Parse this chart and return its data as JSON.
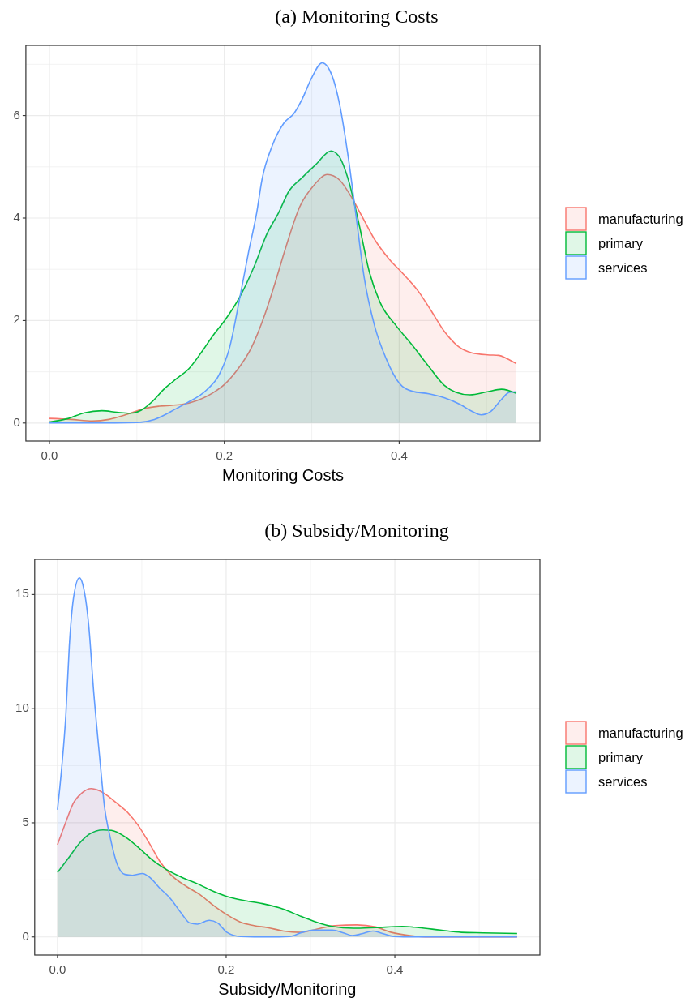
{
  "chart_data": [
    {
      "type": "area",
      "title": "(a) Monitoring Costs",
      "xlabel": "Monitoring Costs",
      "xlim": [
        -0.027,
        0.561
      ],
      "xticks": [
        {
          "value": 0,
          "label": "0.0"
        },
        {
          "value": 0.2,
          "label": "0.2"
        },
        {
          "value": 0.4,
          "label": "0.4"
        }
      ],
      "ylim": [
        -0.351,
        7.37
      ],
      "yticks": [
        0,
        2,
        4,
        6
      ],
      "grid": true,
      "legend": "right",
      "series": [
        {
          "name": "manufacturing",
          "color": "#f8766d",
          "x": [
            0,
            0.025,
            0.049,
            0.068,
            0.089,
            0.108,
            0.126,
            0.151,
            0.169,
            0.188,
            0.2,
            0.215,
            0.231,
            0.246,
            0.258,
            0.268,
            0.274,
            0.286,
            0.302,
            0.318,
            0.332,
            0.345,
            0.357,
            0.372,
            0.388,
            0.403,
            0.422,
            0.437,
            0.452,
            0.468,
            0.483,
            0.501,
            0.514,
            0.523,
            0.534
          ],
          "values": [
            0.09,
            0.07,
            0.04,
            0.07,
            0.17,
            0.28,
            0.33,
            0.36,
            0.44,
            0.6,
            0.75,
            1.04,
            1.47,
            2.1,
            2.73,
            3.3,
            3.63,
            4.21,
            4.63,
            4.85,
            4.74,
            4.42,
            4.05,
            3.58,
            3.21,
            2.94,
            2.57,
            2.18,
            1.78,
            1.49,
            1.37,
            1.33,
            1.32,
            1.26,
            1.16
          ]
        },
        {
          "name": "primary",
          "color": "#00ba38",
          "x": [
            0,
            0.022,
            0.04,
            0.06,
            0.077,
            0.092,
            0.105,
            0.117,
            0.132,
            0.145,
            0.16,
            0.175,
            0.188,
            0.2,
            0.218,
            0.234,
            0.249,
            0.262,
            0.274,
            0.289,
            0.305,
            0.322,
            0.331,
            0.342,
            0.354,
            0.366,
            0.378,
            0.397,
            0.415,
            0.434,
            0.452,
            0.465,
            0.481,
            0.501,
            0.517,
            0.534
          ],
          "values": [
            0.02,
            0.09,
            0.2,
            0.24,
            0.21,
            0.19,
            0.25,
            0.41,
            0.68,
            0.86,
            1.07,
            1.41,
            1.73,
            1.99,
            2.47,
            3.05,
            3.7,
            4.1,
            4.53,
            4.79,
            5.05,
            5.31,
            5.21,
            4.74,
            3.89,
            2.94,
            2.36,
            1.89,
            1.52,
            1.1,
            0.73,
            0.6,
            0.55,
            0.61,
            0.66,
            0.58
          ]
        },
        {
          "name": "services",
          "color": "#619cff",
          "x": [
            0,
            0.05,
            0.1,
            0.12,
            0.145,
            0.157,
            0.18,
            0.194,
            0.206,
            0.218,
            0.228,
            0.237,
            0.243,
            0.255,
            0.268,
            0.28,
            0.289,
            0.3,
            0.312,
            0.323,
            0.332,
            0.342,
            0.351,
            0.36,
            0.372,
            0.385,
            0.4,
            0.415,
            0.434,
            0.452,
            0.47,
            0.483,
            0.494,
            0.505,
            0.517,
            0.526,
            0.534
          ],
          "values": [
            0,
            0,
            0.01,
            0.07,
            0.28,
            0.39,
            0.65,
            0.94,
            1.47,
            2.47,
            3.36,
            4.1,
            4.74,
            5.42,
            5.85,
            6.05,
            6.32,
            6.74,
            7.03,
            6.79,
            6.21,
            5.16,
            4.0,
            2.84,
            1.89,
            1.26,
            0.78,
            0.62,
            0.57,
            0.49,
            0.36,
            0.23,
            0.16,
            0.23,
            0.46,
            0.6,
            0.61
          ]
        }
      ]
    },
    {
      "type": "area",
      "title": "(b) Subsidy/Monitoring",
      "xlabel": "Subsidy/Monitoring",
      "xlim": [
        -0.027,
        0.572
      ],
      "xticks": [
        {
          "value": 0,
          "label": "0.0"
        },
        {
          "value": 0.2,
          "label": "0.2"
        },
        {
          "value": 0.4,
          "label": "0.4"
        }
      ],
      "ylim": [
        -0.79,
        16.54
      ],
      "yticks": [
        0,
        5,
        10,
        15
      ],
      "grid": true,
      "legend": "right",
      "series": [
        {
          "name": "manufacturing",
          "color": "#f8766d",
          "x": [
            0,
            0.01,
            0.019,
            0.029,
            0.04,
            0.05,
            0.058,
            0.07,
            0.083,
            0.096,
            0.109,
            0.121,
            0.134,
            0.153,
            0.169,
            0.185,
            0.201,
            0.217,
            0.233,
            0.249,
            0.268,
            0.288,
            0.307,
            0.329,
            0.355,
            0.377,
            0.396,
            0.418,
            0.441,
            0.5,
            0.545
          ],
          "values": [
            4.04,
            5.04,
            5.87,
            6.31,
            6.5,
            6.4,
            6.22,
            5.87,
            5.46,
            4.87,
            4.1,
            3.33,
            2.74,
            2.21,
            1.85,
            1.38,
            0.97,
            0.65,
            0.5,
            0.41,
            0.26,
            0.2,
            0.34,
            0.5,
            0.53,
            0.44,
            0.2,
            0.06,
            0,
            0,
            0
          ]
        },
        {
          "name": "primary",
          "color": "#00ba38",
          "x": [
            0,
            0.013,
            0.026,
            0.038,
            0.054,
            0.064,
            0.08,
            0.096,
            0.112,
            0.128,
            0.147,
            0.166,
            0.185,
            0.204,
            0.224,
            0.243,
            0.268,
            0.288,
            0.307,
            0.326,
            0.351,
            0.377,
            0.409,
            0.428,
            0.454,
            0.479,
            0.505,
            0.545
          ],
          "values": [
            2.82,
            3.45,
            4.1,
            4.51,
            4.69,
            4.67,
            4.39,
            3.92,
            3.39,
            2.98,
            2.62,
            2.33,
            2.0,
            1.74,
            1.58,
            1.46,
            1.22,
            0.91,
            0.65,
            0.46,
            0.38,
            0.41,
            0.46,
            0.41,
            0.3,
            0.2,
            0.18,
            0.15
          ]
        },
        {
          "name": "services",
          "color": "#619cff",
          "x": [
            0,
            0.005,
            0.01,
            0.014,
            0.019,
            0.026,
            0.03,
            0.037,
            0.043,
            0.05,
            0.056,
            0.062,
            0.07,
            0.08,
            0.089,
            0.101,
            0.109,
            0.121,
            0.134,
            0.147,
            0.157,
            0.166,
            0.18,
            0.19,
            0.201,
            0.217,
            0.25,
            0.275,
            0.29,
            0.304,
            0.326,
            0.339,
            0.35,
            0.361,
            0.374,
            0.383,
            0.399,
            0.425,
            0.545
          ],
          "values": [
            5.57,
            7.4,
            9.77,
            12.72,
            14.85,
            15.73,
            15.44,
            13.67,
            10.71,
            7.88,
            5.63,
            4.45,
            3.27,
            2.74,
            2.7,
            2.78,
            2.62,
            2.15,
            1.68,
            1.03,
            0.61,
            0.56,
            0.73,
            0.61,
            0.2,
            0.02,
            0,
            0.02,
            0.2,
            0.3,
            0.3,
            0.18,
            0.06,
            0.14,
            0.26,
            0.18,
            0.02,
            0,
            0
          ]
        }
      ]
    }
  ]
}
